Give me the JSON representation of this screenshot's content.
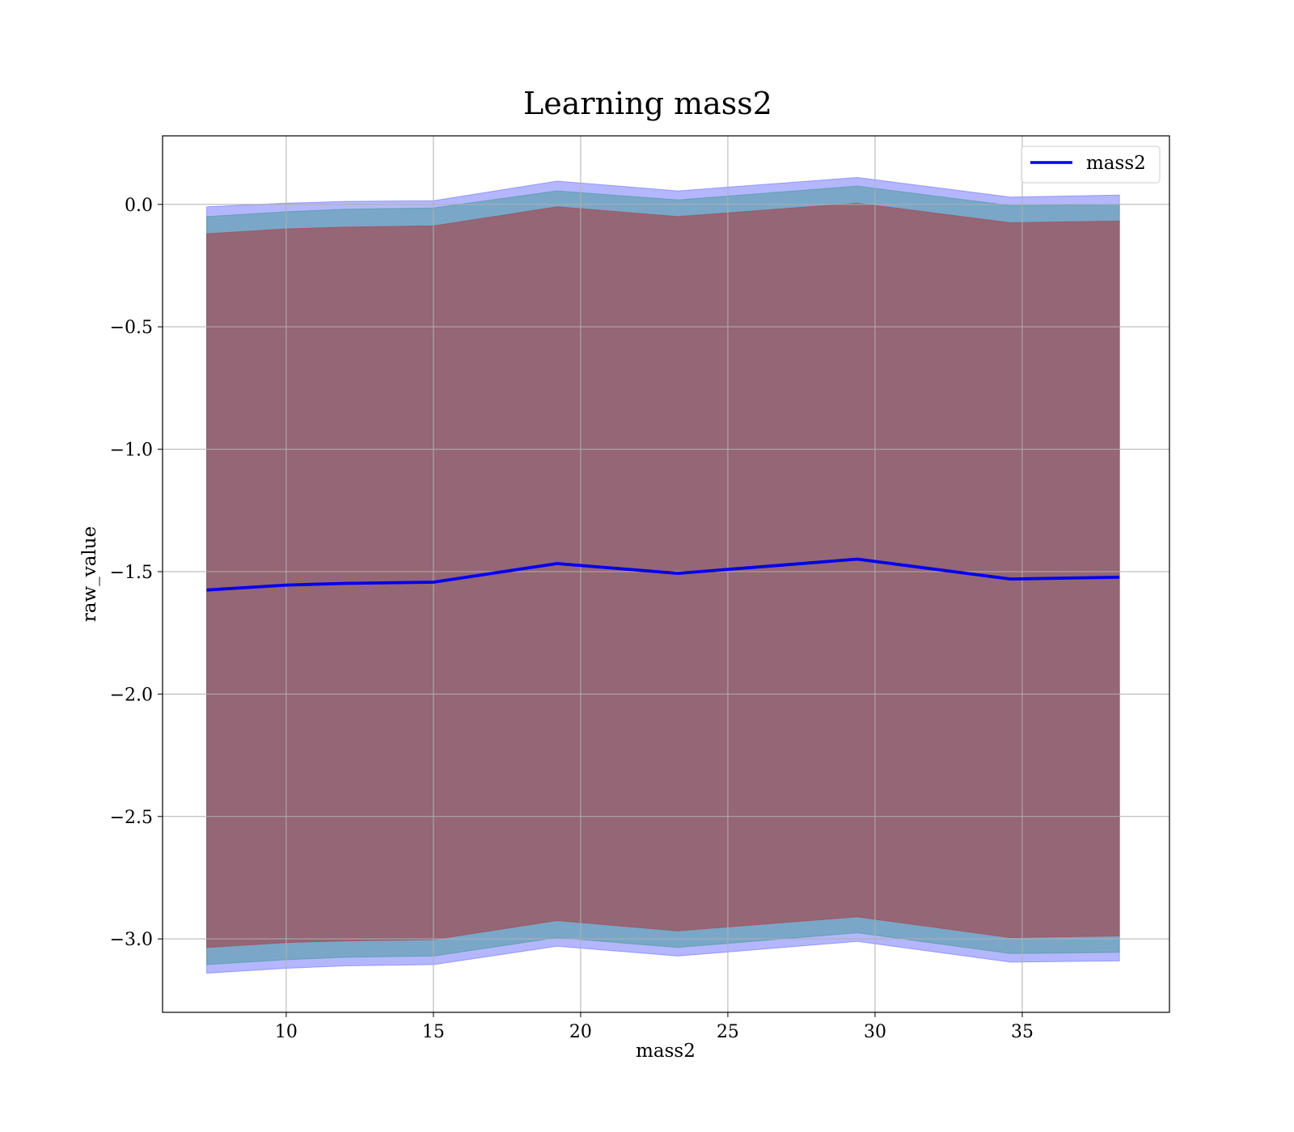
{
  "chart_data": {
    "type": "area",
    "title": "Learning mass2",
    "xlabel": "mass2",
    "ylabel": "raw_value",
    "xlim": [
      5.8,
      40.0
    ],
    "ylim": [
      -3.3,
      0.28
    ],
    "grid": true,
    "legend_position": "top-right",
    "x_ticks": [
      10,
      15,
      20,
      25,
      30,
      35
    ],
    "x_tick_labels": [
      "10",
      "15",
      "20",
      "25",
      "30",
      "35"
    ],
    "y_ticks": [
      0.0,
      -0.5,
      -1.0,
      -1.5,
      -2.0,
      -2.5,
      -3.0
    ],
    "y_tick_labels": [
      "0.0",
      "−0.5",
      "−1.0",
      "−1.5",
      "−2.0",
      "−2.5",
      "−3.0"
    ],
    "x": [
      7.3,
      10.0,
      12.0,
      15.0,
      19.2,
      23.3,
      29.4,
      34.6,
      38.3
    ],
    "series": [
      {
        "name": "mass2",
        "kind": "line",
        "color": "#0000ee",
        "values": [
          -1.575,
          -1.555,
          -1.548,
          -1.543,
          -1.467,
          -1.507,
          -1.449,
          -1.53,
          -1.523
        ]
      }
    ],
    "bands": [
      {
        "color": "#6a70ff",
        "opacity": 0.5,
        "upper": [
          -0.01,
          0.005,
          0.012,
          0.015,
          0.095,
          0.055,
          0.11,
          0.03,
          0.038
        ],
        "lower": [
          -3.14,
          -3.12,
          -3.11,
          -3.105,
          -3.03,
          -3.07,
          -3.01,
          -3.095,
          -3.09
        ]
      },
      {
        "color": "#4a9a9a",
        "opacity": 0.55,
        "upper": [
          -0.05,
          -0.03,
          -0.02,
          -0.015,
          0.055,
          0.018,
          0.075,
          -0.005,
          0.0
        ],
        "lower": [
          -3.105,
          -3.085,
          -3.075,
          -3.07,
          -2.995,
          -3.035,
          -2.975,
          -3.06,
          -3.055
        ]
      },
      {
        "color": "#9a5a66",
        "opacity": 0.85,
        "upper": [
          -0.12,
          -0.1,
          -0.093,
          -0.088,
          -0.01,
          -0.05,
          0.005,
          -0.075,
          -0.068
        ],
        "lower": [
          -3.035,
          -3.015,
          -3.008,
          -3.003,
          -2.925,
          -2.967,
          -2.91,
          -2.995,
          -2.988
        ]
      }
    ]
  }
}
